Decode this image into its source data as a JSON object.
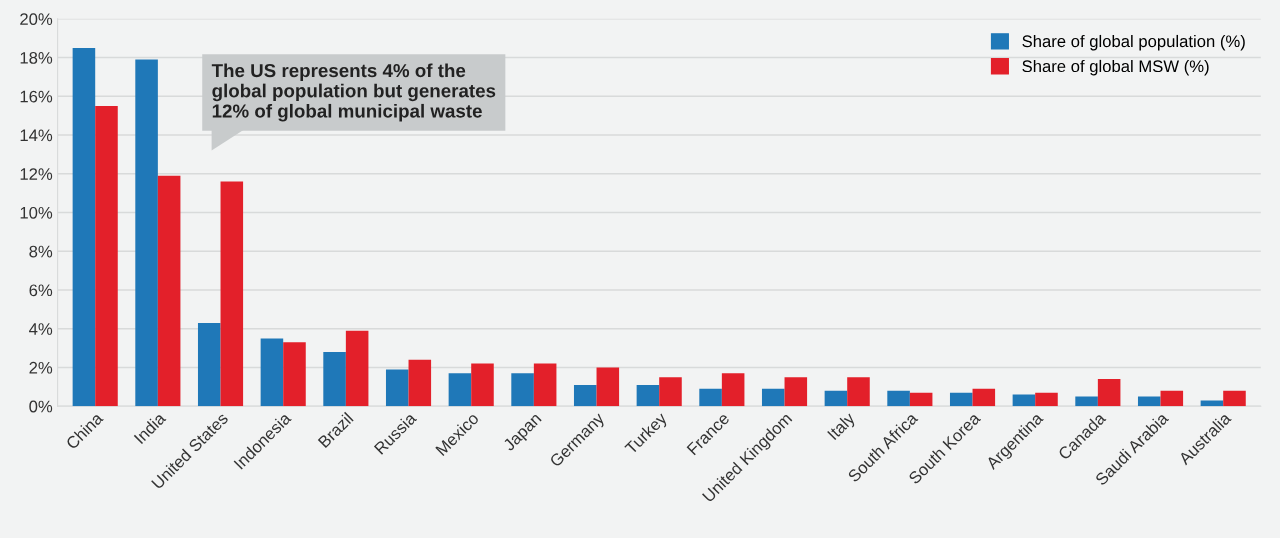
{
  "chart_data": {
    "type": "bar",
    "categories": [
      "China",
      "India",
      "United States",
      "Indonesia",
      "Brazil",
      "Russia",
      "Mexico",
      "Japan",
      "Germany",
      "Turkey",
      "France",
      "United Kingdom",
      "Italy",
      "South Africa",
      "South Korea",
      "Argentina",
      "Canada",
      "Saudi Arabia",
      "Australia"
    ],
    "series": [
      {
        "name": "Share of global population (%)",
        "color": "#1f78b8",
        "values": [
          18.5,
          17.9,
          4.3,
          3.5,
          2.8,
          1.9,
          1.7,
          1.7,
          1.1,
          1.1,
          0.9,
          0.9,
          0.8,
          0.8,
          0.7,
          0.6,
          0.5,
          0.5,
          0.3
        ]
      },
      {
        "name": "Share of global MSW (%)",
        "color": "#e3202a",
        "values": [
          15.5,
          11.9,
          11.6,
          3.3,
          3.9,
          2.4,
          2.2,
          2.2,
          2.0,
          1.5,
          1.7,
          1.5,
          1.5,
          0.7,
          0.9,
          0.7,
          1.4,
          0.8,
          0.8
        ]
      }
    ],
    "ylim": [
      0,
      20
    ],
    "yticks": [
      {
        "value": 0,
        "label": "0%"
      },
      {
        "value": 2,
        "label": "2%"
      },
      {
        "value": 4,
        "label": "4%"
      },
      {
        "value": 6,
        "label": "6%"
      },
      {
        "value": 8,
        "label": "8%"
      },
      {
        "value": 10,
        "label": "10%"
      },
      {
        "value": 12,
        "label": "12%"
      },
      {
        "value": 14,
        "label": "14%"
      },
      {
        "value": 16,
        "label": "16%"
      },
      {
        "value": 18,
        "label": "18%"
      },
      {
        "value": 20,
        "label": "20%"
      }
    ],
    "annotations": [
      "The US represents 4% of the\nglobal population but generates\n12% of global municipal waste"
    ],
    "grid": "y",
    "legend": "top right"
  }
}
